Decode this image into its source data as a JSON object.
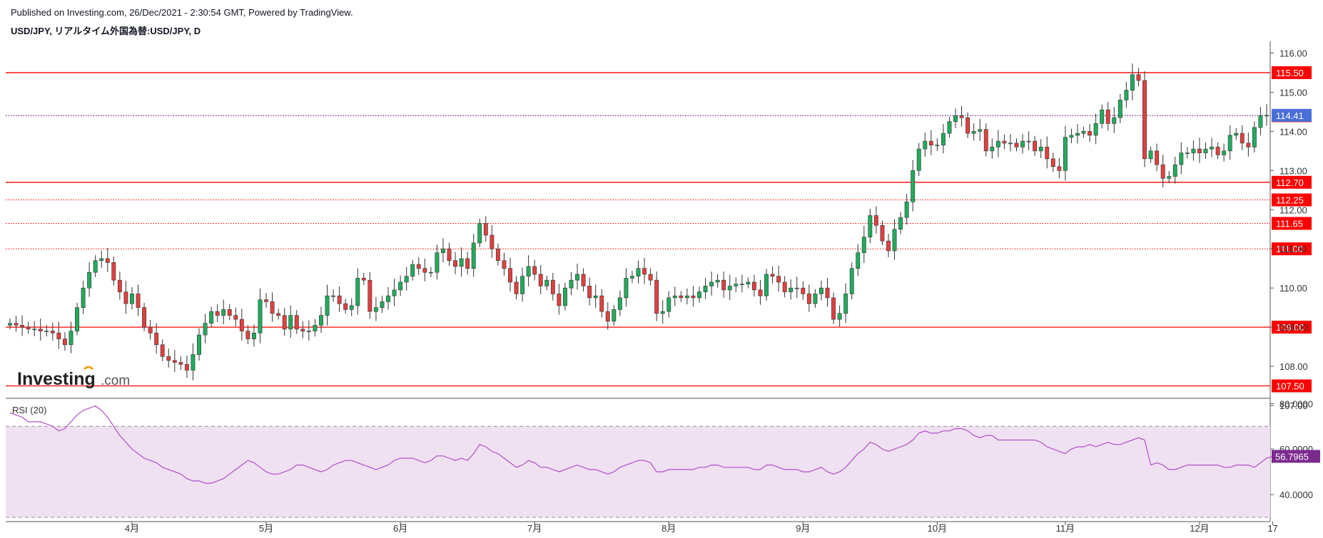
{
  "header": {
    "published": "Published on Investing.com, 26/Dec/2021 - 2:30:54 GMT, Powered by TradingView.",
    "subtitle": "USD/JPY, リアルタイム外国為替:USD/JPY, D"
  },
  "logo": {
    "brand": "Investing",
    "suffix": ".com"
  },
  "colors": {
    "up": "#22ab5d",
    "down": "#e04040",
    "wick": "#333333",
    "hline": "#ff0000",
    "last_price": "#4a6fd9",
    "rsi_line": "#b04fc8",
    "rsi_band": "#efe1f1",
    "rsi_badge": "#7b2a8e"
  },
  "chart_data": [
    {
      "type": "candlestick",
      "title": "USD/JPY, リアルタイム外国為替:USD/JPY, D",
      "ylim": [
        107.2,
        116.3
      ],
      "y_ticks": [
        "116.00",
        "115.00",
        "114.00",
        "113.00",
        "112.00",
        "111.00",
        "110.00",
        "109.00",
        "108.00",
        "107.00"
      ],
      "x_ticks": [
        {
          "label": "4月",
          "i": 20
        },
        {
          "label": "5月",
          "i": 42
        },
        {
          "label": "6月",
          "i": 64
        },
        {
          "label": "7月",
          "i": 86
        },
        {
          "label": "8月",
          "i": 108
        },
        {
          "label": "9月",
          "i": 130
        },
        {
          "label": "10月",
          "i": 152
        },
        {
          "label": "11月",
          "i": 173
        },
        {
          "label": "12月",
          "i": 195
        },
        {
          "label": "17",
          "i": 207
        }
      ],
      "levels": [
        {
          "label": "115.50",
          "value": 115.5,
          "style": "solid"
        },
        {
          "label": "114.40",
          "value": 114.4,
          "style": "dotted"
        },
        {
          "label": "112.70",
          "value": 112.7,
          "style": "solid"
        },
        {
          "label": "112.25",
          "value": 112.25,
          "style": "dotted"
        },
        {
          "label": "111.65",
          "value": 111.65,
          "style": "dotted"
        },
        {
          "label": "111.00",
          "value": 111.0,
          "style": "dotted"
        },
        {
          "label": "109.00",
          "value": 109.0,
          "style": "solid"
        },
        {
          "label": "107.50",
          "value": 107.5,
          "style": "solid"
        }
      ],
      "last_price": {
        "label": "114.41",
        "value": 114.41
      },
      "closes": [
        109.1,
        109.05,
        109.0,
        108.95,
        108.95,
        108.9,
        108.9,
        108.85,
        108.7,
        108.55,
        108.9,
        109.5,
        110.0,
        110.4,
        110.7,
        110.75,
        110.65,
        110.2,
        109.9,
        109.6,
        109.85,
        109.5,
        109.0,
        108.85,
        108.55,
        108.25,
        108.15,
        108.1,
        108.05,
        107.9,
        108.3,
        108.8,
        109.1,
        109.4,
        109.3,
        109.45,
        109.3,
        109.2,
        108.9,
        108.7,
        108.85,
        109.7,
        109.65,
        109.35,
        109.3,
        108.95,
        109.3,
        108.95,
        108.9,
        108.9,
        109.05,
        109.3,
        109.8,
        109.8,
        109.6,
        109.45,
        109.55,
        110.25,
        110.2,
        109.4,
        109.5,
        109.65,
        109.8,
        109.95,
        110.15,
        110.3,
        110.6,
        110.5,
        110.4,
        110.4,
        110.9,
        111.0,
        110.7,
        110.55,
        110.75,
        110.5,
        111.15,
        111.65,
        111.35,
        111.0,
        110.7,
        110.5,
        110.15,
        109.85,
        110.3,
        110.55,
        110.35,
        110.05,
        110.2,
        109.85,
        109.55,
        110.0,
        110.2,
        110.35,
        110.05,
        109.75,
        109.8,
        109.4,
        109.15,
        109.45,
        109.75,
        110.25,
        110.3,
        110.5,
        110.35,
        110.2,
        109.35,
        109.4,
        109.75,
        109.8,
        109.75,
        109.8,
        109.75,
        109.9,
        110.05,
        110.15,
        110.2,
        109.95,
        110.05,
        110.1,
        110.1,
        110.15,
        109.95,
        109.8,
        110.35,
        110.3,
        110.15,
        109.9,
        110.0,
        110.0,
        109.85,
        109.6,
        109.85,
        110.0,
        109.75,
        109.2,
        109.35,
        109.85,
        110.5,
        110.9,
        111.3,
        111.85,
        111.6,
        111.2,
        110.95,
        111.5,
        111.8,
        112.2,
        113.0,
        113.55,
        113.75,
        113.65,
        113.65,
        113.95,
        114.25,
        114.4,
        114.35,
        113.95,
        114.0,
        114.05,
        113.5,
        113.6,
        113.75,
        113.7,
        113.7,
        113.6,
        113.75,
        113.75,
        113.5,
        113.6,
        113.3,
        113.1,
        113.0,
        113.85,
        113.9,
        113.95,
        114.0,
        113.9,
        114.2,
        114.55,
        114.2,
        114.35,
        114.8,
        115.05,
        115.45,
        115.3,
        113.3,
        113.5,
        113.15,
        112.8,
        112.85,
        113.15,
        113.45,
        113.45,
        113.55,
        113.45,
        113.55,
        113.6,
        113.4,
        113.5,
        113.9,
        113.95,
        113.7,
        113.6,
        114.1,
        114.4,
        114.41
      ]
    },
    {
      "type": "line",
      "title": "RSI (20)",
      "ylim": [
        32.5,
        82
      ],
      "y_ticks": [
        "80.0000",
        "60.0000",
        "40.0000"
      ],
      "band": [
        70,
        30
      ],
      "last": {
        "label": "56.7965",
        "value": 56.7965
      },
      "values": [
        76,
        75,
        74,
        72,
        72,
        72,
        71,
        70,
        68,
        69,
        72,
        75,
        77,
        78,
        79,
        77,
        74,
        70,
        66,
        63,
        60,
        58,
        56,
        55,
        54,
        52,
        51,
        50,
        49,
        47,
        46,
        46,
        45,
        45,
        46,
        47,
        49,
        51,
        53,
        55,
        54,
        52,
        50,
        49,
        49,
        50,
        51,
        53,
        53,
        52,
        51,
        50,
        51,
        53,
        54,
        55,
        55,
        54,
        53,
        52,
        51,
        52,
        53,
        55,
        56,
        56,
        56,
        55,
        54,
        55,
        57,
        57,
        56,
        55,
        56,
        55,
        58,
        62,
        61,
        59,
        58,
        56,
        54,
        52,
        53,
        55,
        54,
        52,
        52,
        51,
        50,
        51,
        52,
        53,
        52,
        51,
        51,
        50,
        49,
        50,
        52,
        53,
        54,
        55,
        55,
        54,
        50,
        50,
        51,
        51,
        51,
        51,
        51,
        52,
        52,
        53,
        53,
        52,
        52,
        52,
        52,
        52,
        51,
        51,
        53,
        53,
        52,
        51,
        51,
        51,
        50,
        50,
        51,
        52,
        50,
        49,
        50,
        52,
        55,
        58,
        60,
        63,
        62,
        60,
        59,
        60,
        61,
        62,
        64,
        67,
        68,
        67,
        67,
        68,
        68,
        69,
        69,
        68,
        66,
        65,
        66,
        66,
        64,
        64,
        64,
        64,
        64,
        64,
        64,
        63,
        61,
        60,
        59,
        58,
        60,
        61,
        61,
        62,
        61,
        62,
        63,
        62,
        62,
        63,
        64,
        65,
        64,
        53,
        54,
        53,
        51,
        51,
        52,
        53,
        53,
        53,
        53,
        53,
        53,
        52,
        52,
        53,
        53,
        53,
        52,
        54,
        56,
        56.7965
      ]
    }
  ]
}
